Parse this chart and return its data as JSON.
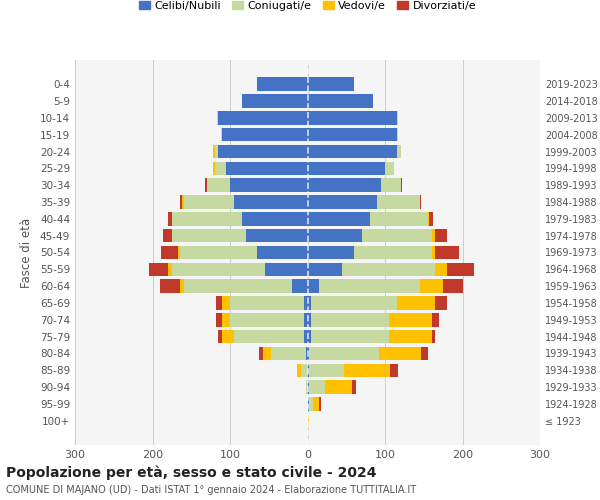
{
  "age_groups": [
    "100+",
    "95-99",
    "90-94",
    "85-89",
    "80-84",
    "75-79",
    "70-74",
    "65-69",
    "60-64",
    "55-59",
    "50-54",
    "45-49",
    "40-44",
    "35-39",
    "30-34",
    "25-29",
    "20-24",
    "15-19",
    "10-14",
    "5-9",
    "0-4"
  ],
  "birth_years": [
    "≤ 1923",
    "1924-1928",
    "1929-1933",
    "1934-1938",
    "1939-1943",
    "1944-1948",
    "1949-1953",
    "1954-1958",
    "1959-1963",
    "1964-1968",
    "1969-1973",
    "1974-1978",
    "1979-1983",
    "1984-1988",
    "1989-1993",
    "1994-1998",
    "1999-2003",
    "2004-2008",
    "2009-2013",
    "2014-2018",
    "2019-2023"
  ],
  "males": {
    "celibi": [
      0,
      0,
      0,
      0,
      2,
      5,
      5,
      5,
      20,
      55,
      65,
      80,
      85,
      95,
      100,
      105,
      115,
      110,
      115,
      85,
      65
    ],
    "coniugati": [
      0,
      0,
      2,
      8,
      45,
      90,
      95,
      95,
      140,
      120,
      100,
      95,
      90,
      65,
      30,
      15,
      5,
      2,
      2,
      0,
      0
    ],
    "vedovi": [
      0,
      0,
      0,
      5,
      10,
      15,
      10,
      10,
      5,
      5,
      2,
      0,
      0,
      2,
      0,
      2,
      2,
      0,
      0,
      0,
      0
    ],
    "divorziati": [
      0,
      0,
      0,
      0,
      5,
      5,
      8,
      8,
      25,
      25,
      22,
      12,
      5,
      2,
      2,
      0,
      0,
      0,
      0,
      0,
      0
    ]
  },
  "females": {
    "nubili": [
      0,
      2,
      2,
      2,
      2,
      5,
      5,
      5,
      15,
      45,
      60,
      70,
      80,
      90,
      95,
      100,
      115,
      115,
      115,
      85,
      60
    ],
    "coniugate": [
      0,
      5,
      20,
      45,
      90,
      100,
      100,
      110,
      130,
      120,
      100,
      90,
      75,
      55,
      25,
      12,
      5,
      2,
      2,
      0,
      0
    ],
    "vedove": [
      2,
      8,
      35,
      60,
      55,
      55,
      55,
      50,
      30,
      15,
      5,
      5,
      2,
      0,
      0,
      0,
      0,
      0,
      0,
      0,
      0
    ],
    "divorziate": [
      0,
      2,
      5,
      10,
      8,
      5,
      10,
      15,
      25,
      35,
      30,
      15,
      5,
      2,
      2,
      0,
      0,
      0,
      0,
      0,
      0
    ]
  },
  "colors": {
    "celibi_nubili": "#4472c4",
    "coniugati": "#c5d9a0",
    "vedovi": "#ffc000",
    "divorziati": "#c0392b"
  },
  "title": "Popolazione per età, sesso e stato civile - 2024",
  "subtitle": "COMUNE DI MAJANO (UD) - Dati ISTAT 1° gennaio 2024 - Elaborazione TUTTITALIA.IT",
  "ylabel_left": "Fasce di età",
  "xlim": 300,
  "legend_labels": [
    "Celibi/Nubili",
    "Coniugati/e",
    "Vedovi/e",
    "Divorziati/e"
  ],
  "background_color": "#ffffff",
  "grid_color": "#cccccc"
}
